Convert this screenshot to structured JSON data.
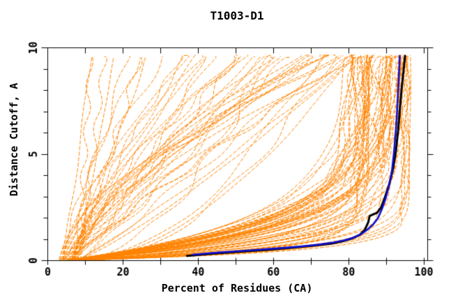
{
  "chart_data": {
    "type": "line",
    "title": "T1003-D1",
    "xlabel": "Percent of Residues (CA)",
    "ylabel": "Distance Cutoff, A",
    "xlim": [
      0,
      101
    ],
    "ylim": [
      0,
      10
    ],
    "grid": false,
    "background": "#ffffff",
    "axis_color": "#000000",
    "x_major_ticks": [
      0,
      20,
      40,
      60,
      80,
      100
    ],
    "x_major_labels": [
      "0",
      "20",
      "40",
      "60",
      "80",
      "100"
    ],
    "x_minor_ticks": [
      10,
      30,
      50,
      70,
      90
    ],
    "x_top_ticks": [
      0,
      10,
      20,
      30,
      40,
      50,
      60,
      70,
      80,
      90,
      100
    ],
    "y_major_ticks": [
      0,
      5,
      10
    ],
    "y_major_labels": [
      "0",
      "5",
      "10"
    ],
    "y_minor_ticks": [
      1,
      2,
      3,
      4,
      6,
      7,
      8,
      9
    ],
    "series": [
      {
        "name": "highlighted-model-black",
        "color": "#000000",
        "width": 3,
        "dash": [],
        "points": [
          [
            37,
            0.22
          ],
          [
            44,
            0.33
          ],
          [
            51,
            0.42
          ],
          [
            59,
            0.52
          ],
          [
            66,
            0.62
          ],
          [
            71,
            0.71
          ],
          [
            75.5,
            0.8
          ],
          [
            78.5,
            0.92
          ],
          [
            81,
            1.05
          ],
          [
            83,
            1.22
          ],
          [
            84.3,
            1.45
          ],
          [
            85.2,
            1.8
          ],
          [
            85.6,
            2.1
          ],
          [
            87.6,
            2.25
          ],
          [
            88.6,
            2.5
          ],
          [
            89.6,
            2.95
          ],
          [
            90.8,
            3.6
          ],
          [
            91.8,
            4.3
          ],
          [
            92.6,
            5.2
          ],
          [
            93.2,
            6.2
          ],
          [
            93.7,
            7.3
          ],
          [
            94.2,
            8.3
          ],
          [
            94.7,
            9.1
          ],
          [
            95,
            9.62
          ]
        ]
      },
      {
        "name": "highlighted-model-blue",
        "color": "#0f0fd0",
        "width": 2.6,
        "dash": [],
        "points": [
          [
            38.5,
            0.28
          ],
          [
            45.5,
            0.38
          ],
          [
            52,
            0.46
          ],
          [
            60,
            0.56
          ],
          [
            67,
            0.66
          ],
          [
            72,
            0.75
          ],
          [
            76,
            0.85
          ],
          [
            79,
            0.96
          ],
          [
            81.5,
            1.09
          ],
          [
            83.5,
            1.26
          ],
          [
            85,
            1.46
          ],
          [
            86.5,
            1.7
          ],
          [
            87.8,
            2.0
          ],
          [
            88.8,
            2.4
          ],
          [
            89.8,
            2.9
          ],
          [
            90.7,
            3.5
          ],
          [
            91.5,
            4.2
          ],
          [
            92,
            5.0
          ],
          [
            92.5,
            6.0
          ],
          [
            92.9,
            7.1
          ],
          [
            93.2,
            8.2
          ],
          [
            93.45,
            9.0
          ],
          [
            93.6,
            9.62
          ]
        ]
      }
    ],
    "ensemble": {
      "name": "all-models-orange",
      "color": "#ff8300",
      "width": 1,
      "dash": [
        5,
        3
      ],
      "count": 112,
      "seed": 7,
      "good_fraction": 0.58,
      "start_percent": [
        3,
        9
      ],
      "good_pmax": [
        76,
        96.5
      ],
      "good_pmax_skew": 0.5,
      "good_tau": [
        0.4,
        2.2
      ],
      "poor_pmax": [
        11,
        88
      ],
      "poor_k": [
        0.5,
        1.7
      ],
      "wiggle_amp": 1.7,
      "wiggle_freq": [
        0.4,
        1.6
      ],
      "y_end": [
        9.53,
        9.67
      ]
    }
  }
}
